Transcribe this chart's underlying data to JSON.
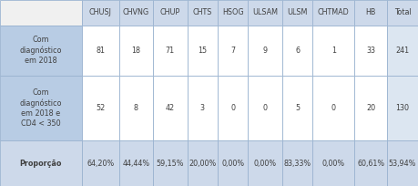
{
  "col_headers": [
    "CHUSJ",
    "CHVNG",
    "CHUP",
    "CHTS",
    "HSOG",
    "ULSAM",
    "ULSM",
    "CHTMAD",
    "HB",
    "Total"
  ],
  "row_headers": [
    "Com\ndiagnóstico\nem 2018",
    "Com\ndiagnóstico\nem 2018 e\nCD4 < 350",
    "Proporção"
  ],
  "row1_data": [
    "81",
    "18",
    "71",
    "15",
    "7",
    "9",
    "6",
    "1",
    "33",
    "241"
  ],
  "row2_data": [
    "52",
    "8",
    "42",
    "3",
    "0",
    "0",
    "5",
    "0",
    "20",
    "130"
  ],
  "row3_data": [
    "64,20%",
    "44,44%",
    "59,15%",
    "20,00%",
    "0,00%",
    "0,00%",
    "83,33%",
    "0,00%",
    "60,61%",
    "53,94%"
  ],
  "header_bg": "#cdd9ea",
  "row_header_bg": "#b8cce4",
  "row1_bg": "#ffffff",
  "row2_bg": "#ffffff",
  "row3_bg": "#cdd9ea",
  "total_col_bg1": "#dce6f1",
  "total_col_bg2": "#dce6f1",
  "border_color": "#9ab3d0",
  "text_color": "#404040",
  "header_fontsize": 5.8,
  "cell_fontsize": 5.8,
  "fig_width": 4.59,
  "fig_height": 2.04,
  "dpi": 100
}
